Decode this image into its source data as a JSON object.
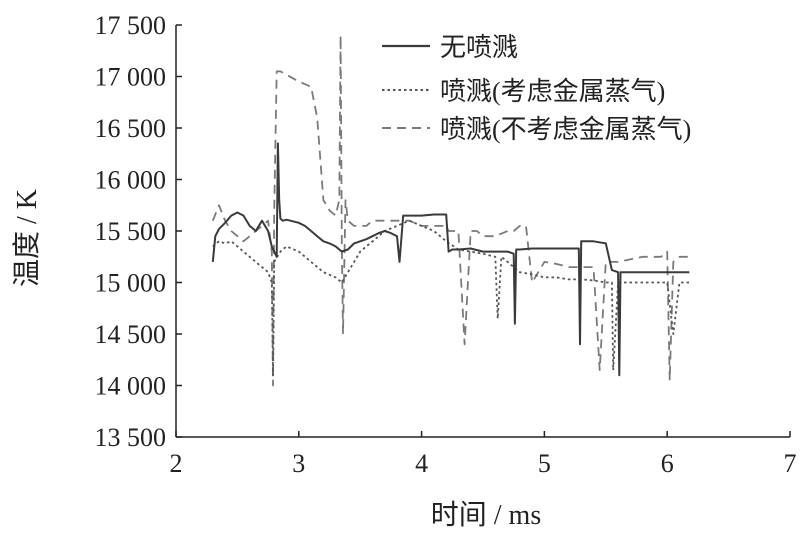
{
  "chart_data": {
    "type": "line",
    "xlabel": "时间 / ms",
    "ylabel": "温度 / K",
    "xlim": [
      2,
      7
    ],
    "ylim": [
      13500,
      17500
    ],
    "x_ticks": [
      2,
      3,
      4,
      5,
      6,
      7
    ],
    "x_tick_labels": [
      "2",
      "3",
      "4",
      "5",
      "6",
      "7"
    ],
    "y_ticks": [
      13500,
      14000,
      14500,
      15000,
      15500,
      16000,
      16500,
      17000,
      17500
    ],
    "y_tick_labels": [
      "13 500",
      "14 000",
      "14 500",
      "15 000",
      "15 500",
      "16 000",
      "16 500",
      "17 000",
      "17 500"
    ],
    "legend_position": "top-right",
    "grid": false,
    "series": [
      {
        "name": "无喷溅",
        "style": "solid",
        "color": "#3a3a3a",
        "x": [
          2.3,
          2.32,
          2.35,
          2.4,
          2.45,
          2.5,
          2.55,
          2.6,
          2.65,
          2.7,
          2.75,
          2.78,
          2.8,
          2.82,
          2.83,
          2.84,
          2.85,
          2.87,
          2.9,
          3.0,
          3.05,
          3.1,
          3.15,
          3.2,
          3.25,
          3.3,
          3.35,
          3.4,
          3.45,
          3.5,
          3.55,
          3.6,
          3.65,
          3.7,
          3.75,
          3.8,
          3.82,
          3.85,
          3.9,
          4.0,
          4.1,
          4.2,
          4.22,
          4.25,
          4.3,
          4.4,
          4.5,
          4.6,
          4.7,
          4.75,
          4.76,
          4.77,
          4.8,
          4.9,
          5.0,
          5.1,
          5.2,
          5.28,
          5.29,
          5.3,
          5.32,
          5.4,
          5.5,
          5.55,
          5.6,
          5.61,
          5.62,
          5.65,
          5.8,
          6.0,
          6.1,
          6.18
        ],
        "y": [
          15200,
          15450,
          15520,
          15580,
          15650,
          15680,
          15650,
          15550,
          15500,
          15600,
          15500,
          15350,
          15300,
          15250,
          16350,
          15800,
          15620,
          15600,
          15610,
          15580,
          15550,
          15500,
          15450,
          15400,
          15380,
          15350,
          15300,
          15320,
          15380,
          15400,
          15420,
          15450,
          15480,
          15500,
          15480,
          15450,
          15200,
          15650,
          15650,
          15650,
          15660,
          15660,
          15300,
          15320,
          15320,
          15330,
          15300,
          15300,
          15300,
          15280,
          14600,
          15320,
          15320,
          15330,
          15330,
          15330,
          15330,
          15330,
          14400,
          15400,
          15400,
          15400,
          15380,
          15120,
          15100,
          14100,
          15100,
          15100,
          15100,
          15100,
          15100,
          15100
        ]
      },
      {
        "name": "喷溅(考虑金属蒸气)",
        "style": "dotted",
        "color": "#555555",
        "x": [
          2.3,
          2.35,
          2.4,
          2.45,
          2.5,
          2.55,
          2.6,
          2.65,
          2.7,
          2.75,
          2.78,
          2.79,
          2.8,
          2.85,
          2.9,
          3.0,
          3.1,
          3.2,
          3.3,
          3.35,
          3.4,
          3.45,
          3.5,
          3.55,
          3.6,
          3.65,
          3.7,
          3.8,
          3.9,
          4.0,
          4.1,
          4.2,
          4.3,
          4.4,
          4.5,
          4.6,
          4.62,
          4.65,
          4.7,
          4.8,
          4.9,
          5.0,
          5.1,
          5.2,
          5.3,
          5.4,
          5.5,
          5.55,
          5.56,
          5.6,
          5.8,
          6.0,
          6.05,
          6.1,
          6.2
        ],
        "y": [
          15350,
          15400,
          15380,
          15400,
          15350,
          15300,
          15250,
          15200,
          15150,
          15100,
          15000,
          14100,
          15200,
          15300,
          15350,
          15300,
          15200,
          15100,
          15050,
          15000,
          15100,
          15200,
          15300,
          15350,
          15400,
          15450,
          15500,
          15550,
          15600,
          15550,
          15500,
          15400,
          15320,
          15300,
          15280,
          15250,
          14650,
          15250,
          15200,
          15100,
          15080,
          15050,
          15050,
          15030,
          15030,
          15020,
          15000,
          15000,
          14150,
          15000,
          15000,
          15000,
          14500,
          15000,
          15000
        ]
      },
      {
        "name": "喷溅(不考虑金属蒸气)",
        "style": "dashed",
        "color": "#7a7a7a",
        "x": [
          2.3,
          2.35,
          2.4,
          2.45,
          2.5,
          2.55,
          2.6,
          2.65,
          2.7,
          2.75,
          2.78,
          2.79,
          2.8,
          2.82,
          2.85,
          3.0,
          3.1,
          3.15,
          3.2,
          3.25,
          3.3,
          3.33,
          3.34,
          3.35,
          3.36,
          3.38,
          3.4,
          3.45,
          3.5,
          3.55,
          3.6,
          3.7,
          3.8,
          3.9,
          4.0,
          4.1,
          4.2,
          4.22,
          4.3,
          4.35,
          4.4,
          4.45,
          4.5,
          4.6,
          4.7,
          4.75,
          4.8,
          4.85,
          4.9,
          5.0,
          5.1,
          5.2,
          5.3,
          5.4,
          5.45,
          5.5,
          5.6,
          5.8,
          5.95,
          6.0,
          6.02,
          6.05,
          6.1,
          6.2
        ],
        "y": [
          15600,
          15750,
          15600,
          15500,
          15450,
          15400,
          15450,
          15500,
          15550,
          15600,
          15300,
          14000,
          15700,
          17050,
          17050,
          16950,
          16900,
          16600,
          15800,
          15700,
          15650,
          15800,
          17400,
          15400,
          14500,
          15800,
          15600,
          15550,
          15550,
          15550,
          15600,
          15600,
          15600,
          15600,
          15550,
          15550,
          15550,
          15500,
          15500,
          14400,
          15500,
          15500,
          15450,
          15450,
          15500,
          15500,
          15550,
          15550,
          15000,
          15200,
          15180,
          15150,
          15150,
          15150,
          14150,
          15200,
          15200,
          15250,
          15250,
          15300,
          14050,
          15200,
          15250,
          15250
        ]
      }
    ]
  }
}
